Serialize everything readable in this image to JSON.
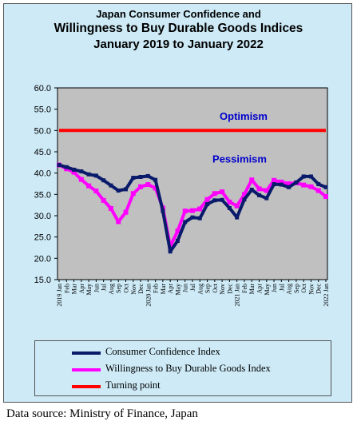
{
  "chart_data": {
    "type": "line",
    "title_line1": "Japan Consumer Confidence and",
    "title_line2": "Willingness to Buy Durable Goods Indices",
    "title_line3": "January 2019 to January 2022",
    "ylim": [
      15,
      60
    ],
    "yticks": [
      "60.0",
      "55.0",
      "50.0",
      "45.0",
      "40.0",
      "35.0",
      "30.0",
      "25.0",
      "20.0",
      "15.0"
    ],
    "ytick_values": [
      60,
      55,
      50,
      45,
      40,
      35,
      30,
      25,
      20,
      15
    ],
    "categories": [
      "2019 Jan",
      "Feb",
      "Mar",
      "Apr",
      "May",
      "Jun",
      "Jul",
      "Aug",
      "Sep",
      "Oct",
      "Nov",
      "Dec",
      "2020 Jan",
      "Feb",
      "Mar",
      "Apr",
      "May",
      "Jun",
      "Jul",
      "Aug",
      "Sep",
      "Oct",
      "Nov",
      "Dec",
      "2021 Jan",
      "Feb",
      "Mar",
      "Apr",
      "May",
      "Jun",
      "Jul",
      "Aug",
      "Sep",
      "Oct",
      "Nov",
      "Dec",
      "2022 Jan"
    ],
    "grid": false,
    "legend_position": "bottom",
    "series": [
      {
        "name": "Consumer Confidence Index",
        "color": "#0a1a6b",
        "values": [
          41.9,
          41.4,
          40.8,
          40.4,
          39.7,
          39.4,
          38.3,
          37.1,
          35.9,
          36.2,
          38.9,
          39.1,
          39.3,
          38.4,
          31.1,
          21.6,
          24.1,
          28.5,
          29.6,
          29.4,
          32.7,
          33.6,
          33.7,
          31.8,
          29.6,
          33.8,
          36.1,
          34.8,
          34.1,
          37.4,
          37.3,
          36.7,
          37.8,
          39.2,
          39.2,
          37.4,
          36.7
        ]
      },
      {
        "name": "Willingness to Buy Durable Goods Index",
        "color": "#ff00ff",
        "values": [
          41.9,
          41.0,
          40.2,
          38.5,
          37.0,
          35.8,
          33.6,
          31.7,
          28.6,
          30.8,
          35.2,
          36.8,
          37.3,
          36.5,
          31.8,
          22.8,
          26.4,
          31.1,
          31.2,
          31.6,
          33.8,
          35.2,
          35.6,
          33.2,
          32.3,
          35.0,
          38.4,
          36.3,
          35.9,
          38.3,
          37.9,
          37.5,
          37.7,
          37.2,
          36.8,
          35.9,
          34.5
        ]
      },
      {
        "name": "Turning point",
        "color": "#ff0000",
        "values": [
          50,
          50,
          50,
          50,
          50,
          50,
          50,
          50,
          50,
          50,
          50,
          50,
          50,
          50,
          50,
          50,
          50,
          50,
          50,
          50,
          50,
          50,
          50,
          50,
          50,
          50,
          50,
          50,
          50,
          50,
          50,
          50,
          50,
          50,
          50,
          50,
          50
        ]
      }
    ],
    "annotations": {
      "optimism": "Optimism",
      "pessimism": "Pessimism"
    },
    "annotation_colors": {
      "text": "#0000cc"
    },
    "plot_background": "#c0c0c0"
  },
  "source": "Data source: Ministry of Finance, Japan"
}
